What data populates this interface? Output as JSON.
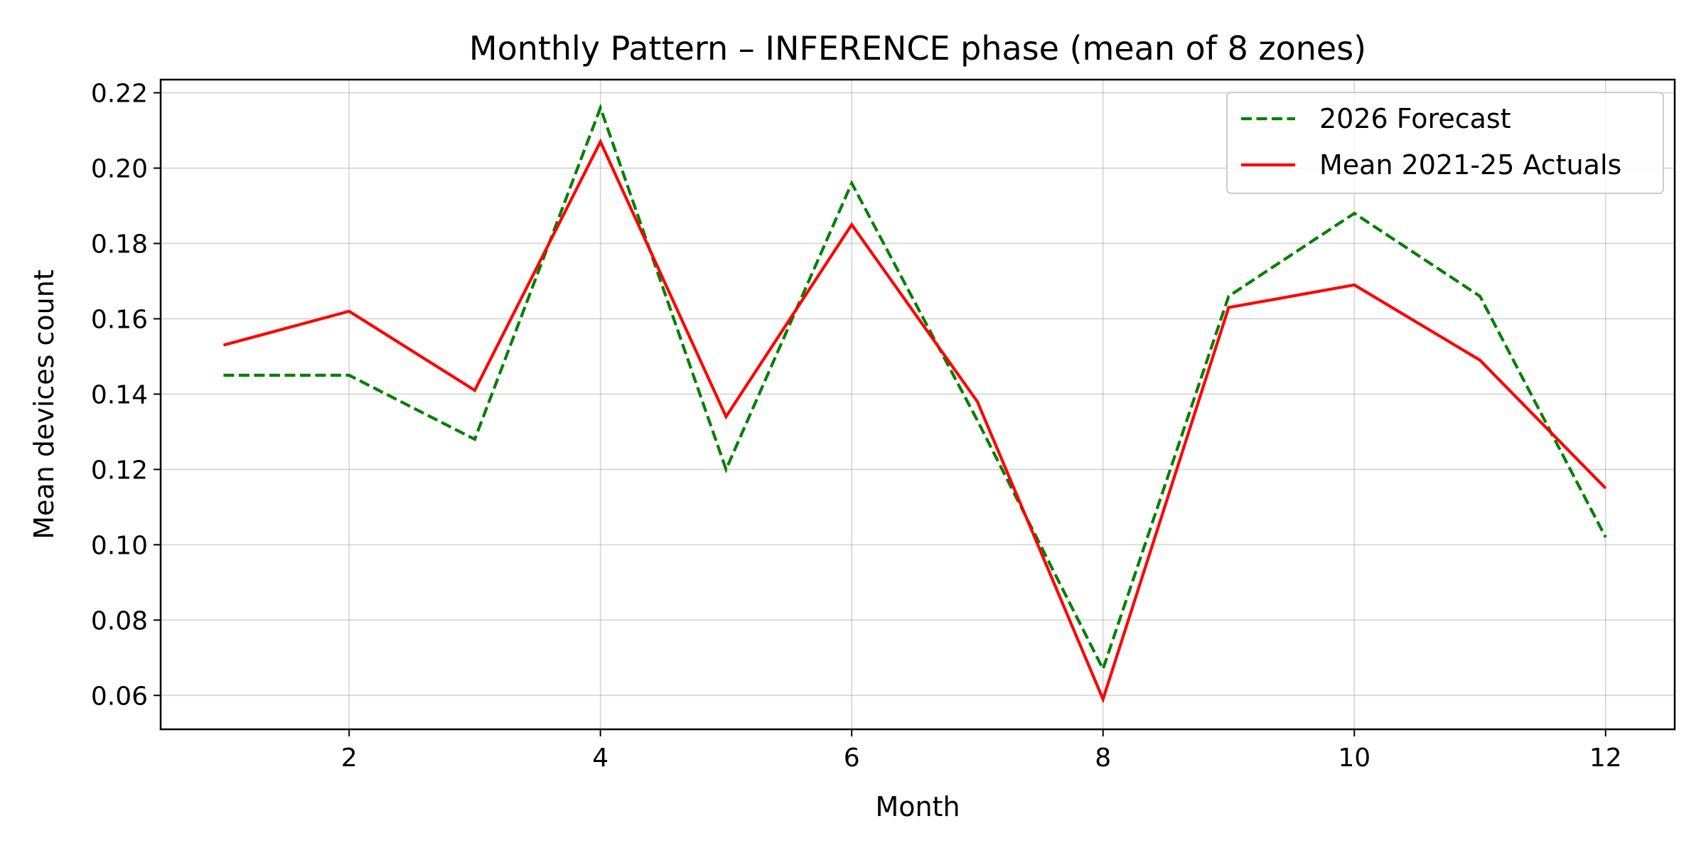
{
  "chart_data": {
    "type": "line",
    "title": "Monthly Pattern – INFERENCE phase (mean of 8 zones)",
    "xlabel": "Month",
    "ylabel": "Mean devices count",
    "xlim": [
      0.5,
      12.55
    ],
    "ylim": [
      0.051,
      0.2235
    ],
    "x_ticks": [
      2,
      4,
      6,
      8,
      10,
      12
    ],
    "y_ticks": [
      0.06,
      0.08,
      0.1,
      0.12,
      0.14,
      0.16,
      0.18,
      0.2,
      0.22
    ],
    "y_tick_labels": [
      "0.06",
      "0.08",
      "0.10",
      "0.12",
      "0.14",
      "0.16",
      "0.18",
      "0.20",
      "0.22"
    ],
    "grid": true,
    "legend_position": "top-right",
    "x": [
      1,
      2,
      3,
      4,
      5,
      6,
      7,
      8,
      9,
      10,
      11,
      12
    ],
    "series": [
      {
        "name": "2026 Forecast",
        "color": "#008000",
        "style": "dashed",
        "values": [
          0.145,
          0.145,
          0.128,
          0.216,
          0.12,
          0.196,
          0.133,
          0.067,
          0.166,
          0.188,
          0.166,
          0.102
        ]
      },
      {
        "name": "Mean 2021-25 Actuals",
        "color": "#ff0000",
        "style": "solid",
        "values": [
          0.153,
          0.162,
          0.141,
          0.207,
          0.134,
          0.185,
          0.138,
          0.059,
          0.163,
          0.169,
          0.149,
          0.115
        ]
      }
    ]
  }
}
